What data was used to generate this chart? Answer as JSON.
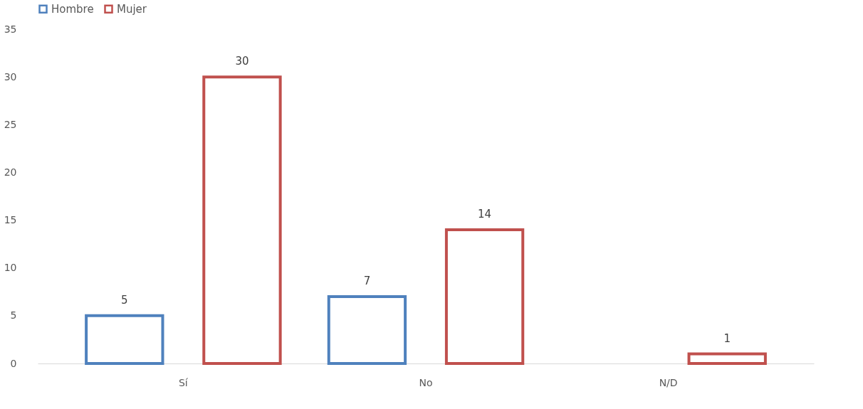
{
  "chart_data": {
    "type": "bar",
    "categories": [
      "Sí",
      "No",
      "N/D"
    ],
    "series": [
      {
        "name": "Hombre",
        "color": "#4f81bd",
        "values": [
          5,
          7,
          null
        ]
      },
      {
        "name": "Mujer",
        "color": "#c0504d",
        "values": [
          30,
          14,
          1
        ]
      }
    ],
    "ylim": [
      0,
      35
    ],
    "yticks": [
      0,
      5,
      10,
      15,
      20,
      25,
      30,
      35
    ],
    "grid": false,
    "legend": "top",
    "data_labels": true
  }
}
